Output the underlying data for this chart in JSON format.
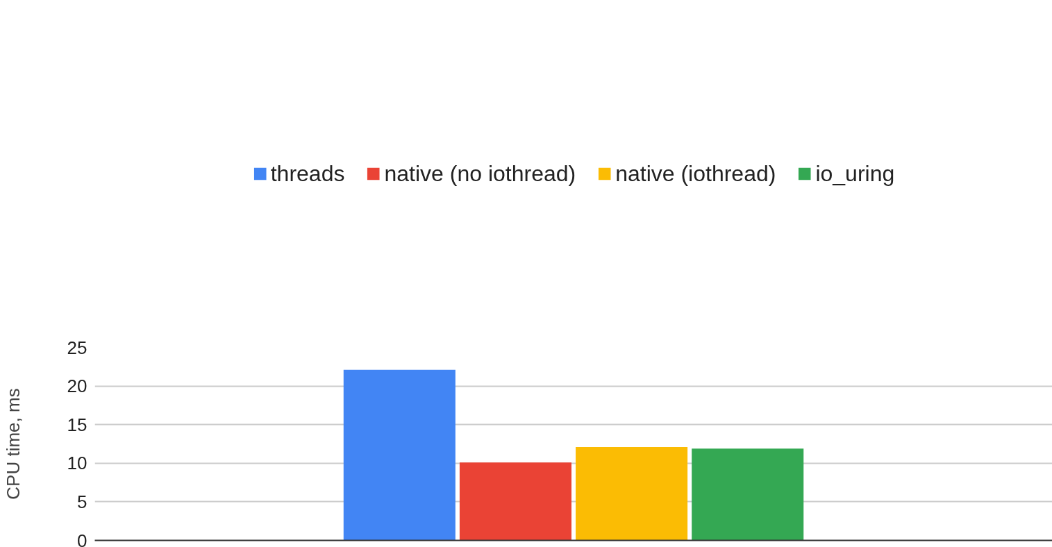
{
  "chart_data": {
    "type": "bar",
    "ylabel": "CPU time, ms",
    "categories": [
      null
    ],
    "series": [
      {
        "name": "threads",
        "color": "#4285f4",
        "values": [
          22.1
        ]
      },
      {
        "name": "native (no iothread)",
        "color": "#ea4335",
        "values": [
          10.1
        ]
      },
      {
        "name": "native (iothread)",
        "color": "#fbbc04",
        "values": [
          12.1
        ]
      },
      {
        "name": "io_uring",
        "color": "#34a853",
        "values": [
          11.9
        ]
      }
    ],
    "ylim": [
      0,
      25
    ],
    "yticks": [
      0,
      5,
      10,
      15,
      20,
      25
    ],
    "grid": "y",
    "legend": "top"
  }
}
